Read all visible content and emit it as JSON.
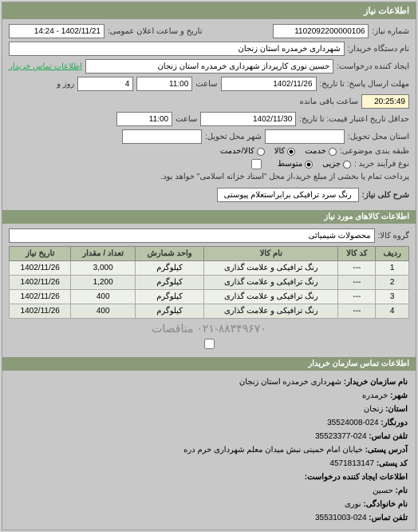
{
  "header": {
    "title": "اطلاعات نیاز"
  },
  "form": {
    "need_no_label": "شماره نیاز:",
    "need_no": "1102092200000106",
    "announce_label": "تاریخ و ساعت اعلان عمومی:",
    "announce_value": "1402/11/21 - 14:24",
    "buyer_org_label": "نام دستگاه خریدار:",
    "buyer_org": "شهرداری خرمدره استان زنجان",
    "requester_label": "ایجاد کننده درخواست:",
    "requester": "حسین نوری کارپرداز شهرداری خرمدره استان زنجان",
    "contact_link": "اطلاعات تماس خریدار",
    "deadline_label": "مهلت ارسال پاسخ: تا تاریخ:",
    "deadline_date": "1402/11/26",
    "hour_label": "ساعت",
    "deadline_hour": "11:00",
    "days_remain": "4",
    "days_label": "روز و",
    "time_remain": "20:25:49",
    "time_remain_label": "ساعت باقی مانده",
    "validity_label": "حداقل تاریخ اعتبار قیمت: تا تاریخ:",
    "validity_date": "1402/11/30",
    "validity_hour": "11:00",
    "delivery_province_label": "استان محل تحویل:",
    "delivery_city_label": "شهر محل تحویل:",
    "category_label": "طبقه بندی موضوعی:",
    "radio_service": "خدمت",
    "radio_goods": "کالا",
    "radio_both": "کالا/خدمت",
    "purchase_type_label": "نوع فرآیند خرید :",
    "radio_small": "جزیی",
    "radio_medium": "متوسط",
    "payment_note": "پرداخت تمام یا بخشی از مبلغ خرید،از محل \"اسناد خزانه اسلامی\" خواهد بود.",
    "desc_label": "شرح کلی نیاز:",
    "desc_value": "رنگ سرد ترافیکی برابراستعلام پیوستی"
  },
  "goods_section": {
    "title": "اطلاعات کالاهای مورد نیاز",
    "group_label": "گروه کالا:",
    "group_value": "محصولات شیمیائی"
  },
  "table": {
    "columns": [
      "ردیف",
      "کد کالا",
      "نام کالا",
      "واحد شمارش",
      "تعداد / مقدار",
      "تاریخ نیاز"
    ],
    "rows": [
      [
        "1",
        "---",
        "رنگ ترافیکی و علامت گذاری",
        "کیلوگرم",
        "3,000",
        "1402/11/26"
      ],
      [
        "2",
        "---",
        "رنگ ترافیکی و علامت گذاری",
        "کیلوگرم",
        "1,200",
        "1402/11/26"
      ],
      [
        "3",
        "---",
        "رنگ ترافیکی و علامت گذاری",
        "کیلوگرم",
        "400",
        "1402/11/26"
      ],
      [
        "4",
        "---",
        "رنگ ترافیکی و علامت گذاری",
        "کیلوگرم",
        "400",
        "1402/11/26"
      ]
    ]
  },
  "watermark": "۰۲۱-۸۸۳۴۹۶۷۰ مناقصات",
  "contact": {
    "section_title": "اطلاعات تماس سازمان خریدار",
    "org_label": "نام سازمان خریدار:",
    "org": "شهرداری خرمدره استان زنجان",
    "city_label": "شهر:",
    "city": "خرمدره",
    "province_label": "استان:",
    "province": "زنجان",
    "fax_label": "دورنگار:",
    "fax": "024-35524008",
    "phone_label": "تلفن تماس:",
    "phone": "024-35523377",
    "address_label": "آدرس پستی:",
    "address": "خیابان امام خمینی نبش میدان معلم شهرداری خرم دره",
    "postal_label": "کد پستی:",
    "postal": "4571813147",
    "creator_section": "اطلاعات ایجاد کننده درخواست:",
    "name_label": "نام:",
    "name": "حسین",
    "lastname_label": "نام خانوادگی:",
    "lastname": "نوری",
    "cphone_label": "تلفن تماس:",
    "cphone": "024-35531003"
  }
}
